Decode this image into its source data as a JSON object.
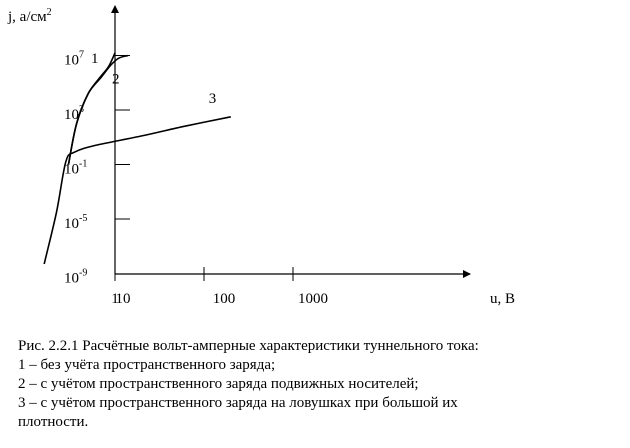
{
  "chart_data": {
    "type": "line",
    "xlabel": "u, В",
    "ylabel": "j, а/см",
    "ylabel_sup": "2",
    "x_scale": "log",
    "y_scale": "log",
    "x_ticks": [
      {
        "label": "1",
        "value": 1
      },
      {
        "label": "10",
        "value": 10
      },
      {
        "label": "100",
        "value": 100
      },
      {
        "label": "1000",
        "value": 1000
      }
    ],
    "y_ticks": [
      {
        "base": "10",
        "exp": "-9",
        "value": -9
      },
      {
        "base": "10",
        "exp": "-5",
        "value": -5
      },
      {
        "base": "10",
        "exp": "-1",
        "value": -1
      },
      {
        "base": "10",
        "exp": "3",
        "value": 3
      },
      {
        "base": "10",
        "exp": "7",
        "value": 7
      }
    ],
    "series": [
      {
        "name": "1",
        "points": [
          [
            3,
            -1
          ],
          [
            3.7,
            2
          ],
          [
            5,
            4.2
          ],
          [
            7,
            5.5
          ],
          [
            8.5,
            6.2
          ],
          [
            10,
            7.2
          ]
        ]
      },
      {
        "name": "2",
        "points": [
          [
            3,
            -1
          ],
          [
            3.7,
            2
          ],
          [
            5,
            4.2
          ],
          [
            7,
            5.4
          ],
          [
            9,
            6.3
          ],
          [
            11,
            6.8
          ],
          [
            14,
            7.0
          ]
        ]
      },
      {
        "name": "3",
        "points": [
          [
            1.6,
            -8.3
          ],
          [
            2.2,
            -4.5
          ],
          [
            2.8,
            -0.8
          ],
          [
            3.5,
            -0.1
          ],
          [
            6,
            0.4
          ],
          [
            20,
            1.1
          ],
          [
            60,
            1.8
          ],
          [
            200,
            2.5
          ]
        ]
      }
    ]
  },
  "caption": {
    "line1": "Рис. 2.2.1    Расчётные вольт-амперные характеристики туннельного тока:",
    "line2": "  1 – без учёта пространственного заряда;",
    "line3": "  2 – с учётом пространственного заряда подвижных носителей;",
    "line4": "  3  – с учётом пространственного заряда на ловушках при большой их",
    "line5": "плотности."
  }
}
